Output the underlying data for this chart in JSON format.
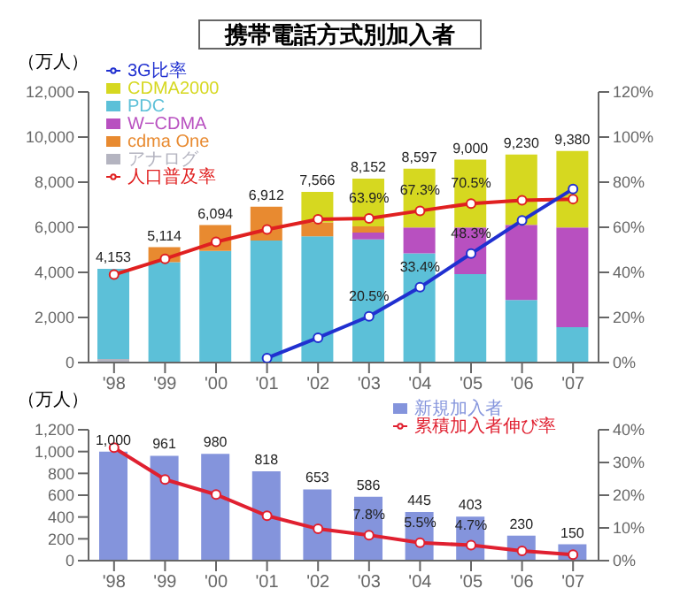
{
  "chart_data": [
    {
      "type": "bar",
      "title": "携帯電話方式別加入者",
      "ylabel": "（万人）",
      "stacked": true,
      "legend": "top left",
      "marker": "circle",
      "categories": [
        "'98",
        "'99",
        "'00",
        "'01",
        "'02",
        "'03",
        "'04",
        "'05",
        "'06",
        "'07"
      ],
      "ylim": [
        0,
        12000
      ],
      "yticks": [
        {
          "value": 0,
          "label": "0"
        },
        {
          "value": 2000,
          "label": "2,000"
        },
        {
          "value": 4000,
          "label": "4,000"
        },
        {
          "value": 6000,
          "label": "6,000"
        },
        {
          "value": 8000,
          "label": "8,000"
        },
        {
          "value": 10000,
          "label": "10,000"
        },
        {
          "value": 12000,
          "label": "12,000"
        }
      ],
      "y2lim": [
        0,
        120
      ],
      "y2ticks": [
        {
          "value": 0,
          "label": "0%"
        },
        {
          "value": 20,
          "label": "20%"
        },
        {
          "value": 40,
          "label": "40%"
        },
        {
          "value": 60,
          "label": "60%"
        },
        {
          "value": 80,
          "label": "80%"
        },
        {
          "value": 100,
          "label": "100%"
        },
        {
          "value": 120,
          "label": "120%"
        }
      ],
      "totals": [
        "4,153",
        "5,114",
        "6,094",
        "6,912",
        "7,566",
        "8,152",
        "8,597",
        "9,000",
        "9,230",
        "9,380"
      ],
      "series": [
        {
          "name": "アナログ",
          "type": "bar",
          "color": "#b4b4c0",
          "values": [
            153,
            0,
            0,
            0,
            0,
            0,
            0,
            0,
            0,
            0
          ]
        },
        {
          "name": "PDC",
          "type": "bar",
          "color": "#5cc0d8",
          "values": [
            4000,
            4450,
            4950,
            5410,
            5600,
            5460,
            4840,
            3920,
            2770,
            1570
          ]
        },
        {
          "name": "W−CDMA",
          "type": "bar",
          "color": "#b850c0",
          "values": [
            0,
            0,
            0,
            0,
            0,
            300,
            1150,
            2070,
            3340,
            4420
          ]
        },
        {
          "name": "cdma One",
          "type": "bar",
          "color": "#e88a30",
          "values": [
            0,
            664,
            1144,
            1502,
            620,
            280,
            0,
            0,
            0,
            0
          ]
        },
        {
          "name": "CDMA2000",
          "type": "bar",
          "color": "#d6d820",
          "values": [
            0,
            0,
            0,
            0,
            1346,
            2112,
            2607,
            3010,
            3120,
            3390
          ]
        },
        {
          "name": "人口普及率",
          "type": "line",
          "axis": "y2",
          "color": "#e02020",
          "values": [
            39,
            46,
            53.5,
            59,
            63.5,
            63.9,
            67.3,
            70.5,
            72,
            72.5
          ],
          "value_labels": [
            null,
            null,
            null,
            null,
            null,
            "63.9%",
            "67.3%",
            "70.5%",
            null,
            null
          ]
        },
        {
          "name": "3G比率",
          "type": "line",
          "axis": "y2",
          "color": "#2030d0",
          "values": [
            null,
            null,
            null,
            2,
            11,
            20.5,
            33.4,
            48.3,
            63,
            77
          ],
          "value_labels": [
            null,
            null,
            null,
            null,
            null,
            "20.5%",
            "33.4%",
            "48.3%",
            null,
            null
          ]
        }
      ]
    },
    {
      "type": "bar",
      "ylabel": "（万人）",
      "legend": "top right",
      "marker": "circle",
      "categories": [
        "'98",
        "'99",
        "'00",
        "'01",
        "'02",
        "'03",
        "'04",
        "'05",
        "'06",
        "'07"
      ],
      "ylim": [
        0,
        1200
      ],
      "yticks": [
        {
          "value": 0,
          "label": "0"
        },
        {
          "value": 200,
          "label": "200"
        },
        {
          "value": 400,
          "label": "400"
        },
        {
          "value": 600,
          "label": "600"
        },
        {
          "value": 800,
          "label": "800"
        },
        {
          "value": 1000,
          "label": "1,000"
        },
        {
          "value": 1200,
          "label": "1,200"
        }
      ],
      "y2lim": [
        0,
        40
      ],
      "y2ticks": [
        {
          "value": 0,
          "label": "0%"
        },
        {
          "value": 10,
          "label": "10%"
        },
        {
          "value": 20,
          "label": "20%"
        },
        {
          "value": 30,
          "label": "30%"
        },
        {
          "value": 40,
          "label": "40%"
        }
      ],
      "series": [
        {
          "name": "新規加入者",
          "type": "bar",
          "color": "#8494dc",
          "values": [
            1000,
            961,
            980,
            818,
            653,
            586,
            445,
            403,
            230,
            150
          ],
          "value_labels": [
            "1,000",
            "961",
            "980",
            "818",
            "653",
            "586",
            "445",
            "403",
            "230",
            "150"
          ]
        },
        {
          "name": "累積加入者伸び率",
          "type": "line",
          "axis": "y2",
          "color": "#e02030",
          "values": [
            34.5,
            24.8,
            20.2,
            13.7,
            9.7,
            7.8,
            5.5,
            4.7,
            3,
            1.8
          ],
          "value_labels": [
            null,
            null,
            null,
            null,
            null,
            "7.8%",
            "5.5%",
            "4.7%",
            null,
            null
          ]
        }
      ]
    }
  ]
}
